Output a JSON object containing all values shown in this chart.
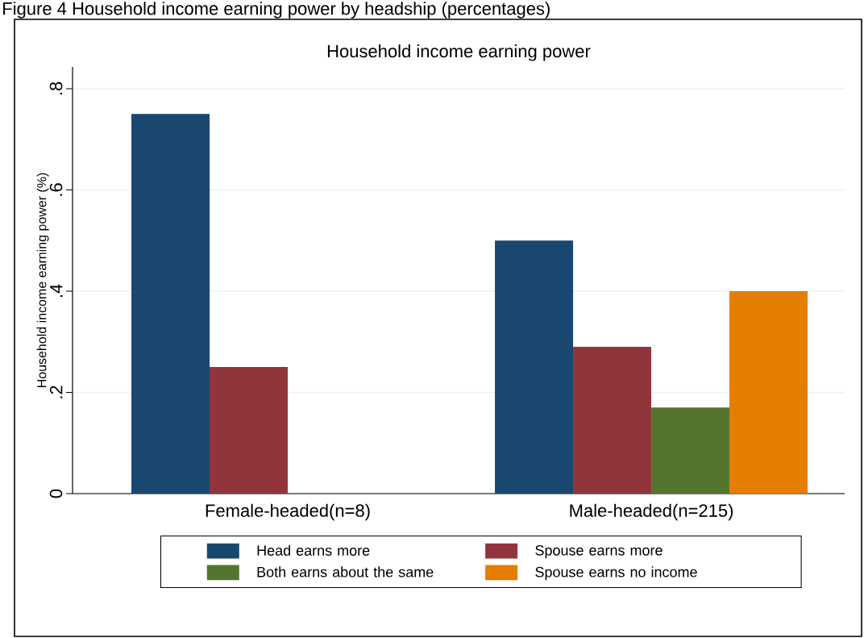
{
  "chart_data": {
    "type": "bar",
    "title": "Household income earning power",
    "ylabel": "Household income earning power (%)",
    "annotations": [
      "Figure 4 Household income earning power by headship (percentages)"
    ],
    "categories": [
      "Female-headed(n=8)",
      "Male-headed(n=215)"
    ],
    "series": [
      {
        "name": "Head earns more",
        "color": "#1a476f",
        "values": [
          0.75,
          0.5
        ]
      },
      {
        "name": "Spouse earns more",
        "color": "#90353b",
        "values": [
          0.25,
          0.29
        ]
      },
      {
        "name": "Both earns about the same",
        "color": "#55752f",
        "values": [
          null,
          0.17
        ]
      },
      {
        "name": "Spouse earns no income",
        "color": "#e37e00",
        "values": [
          null,
          0.4
        ]
      }
    ],
    "ylim": [
      0,
      0.843
    ],
    "yticks": [
      0,
      {
        "value": 0.2,
        "label": ".2"
      },
      {
        "value": 0.4,
        "label": ".4"
      },
      {
        "value": 0.6,
        "label": ".6"
      },
      {
        "value": 0.8,
        "label": ".8"
      }
    ],
    "grid": "y",
    "legend": "bottom"
  }
}
